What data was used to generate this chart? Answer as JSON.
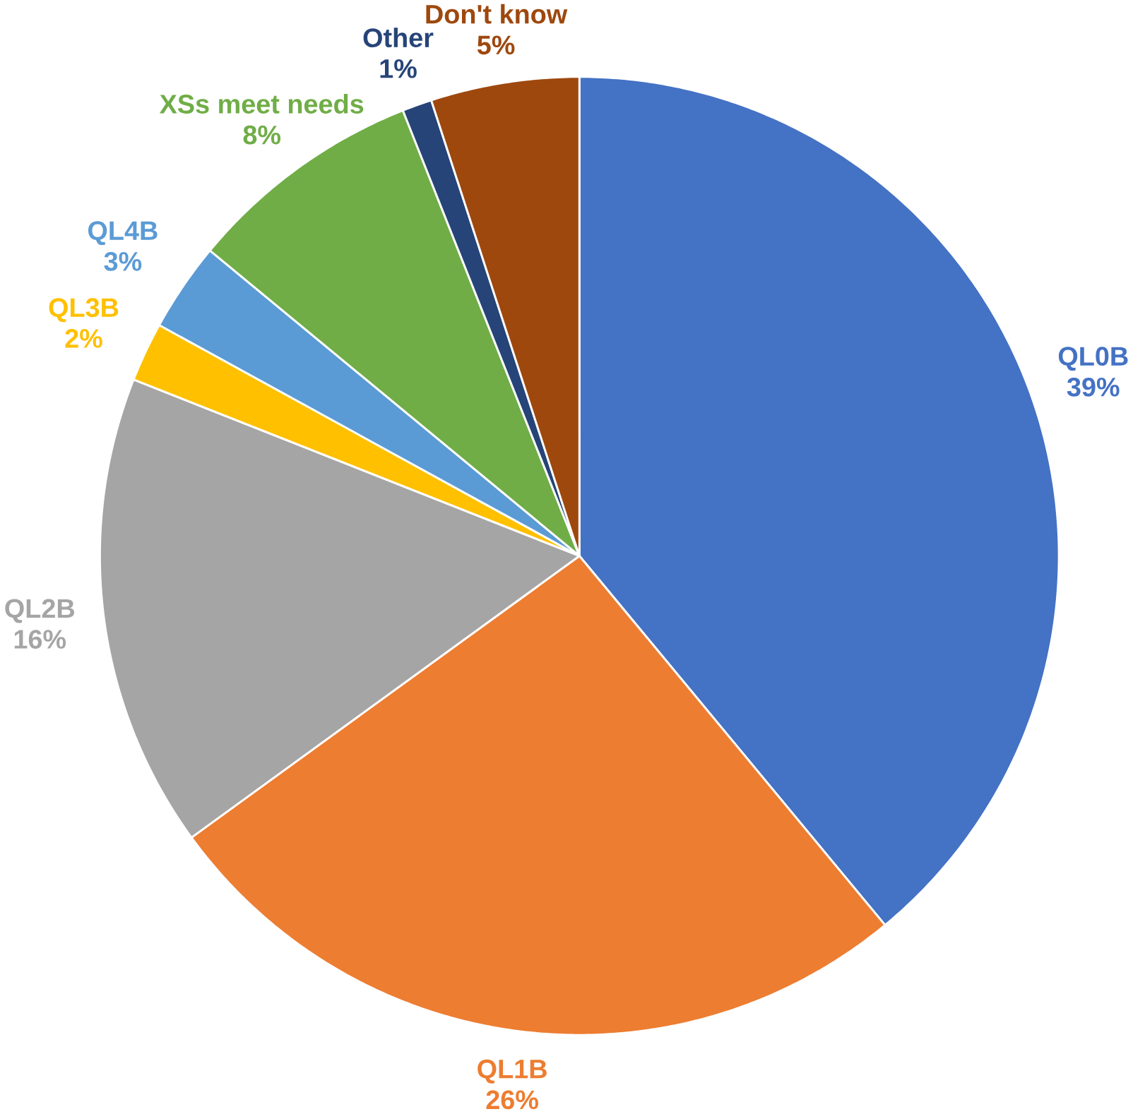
{
  "chart_data": {
    "type": "pie",
    "categories": [
      "QL0B",
      "QL1B",
      "QL2B",
      "QL3B",
      "QL4B",
      "XSs meet needs",
      "Other",
      "Don't know"
    ],
    "values": [
      39,
      26,
      16,
      2,
      3,
      8,
      1,
      5
    ],
    "value_labels": [
      "39%",
      "26%",
      "16%",
      "2%",
      "3%",
      "8%",
      "1%",
      "5%"
    ],
    "colors": [
      "#4472c4",
      "#ed7d31",
      "#a5a5a5",
      "#ffc000",
      "#5b9bd5",
      "#70ad47",
      "#264478",
      "#9e480e"
    ]
  }
}
